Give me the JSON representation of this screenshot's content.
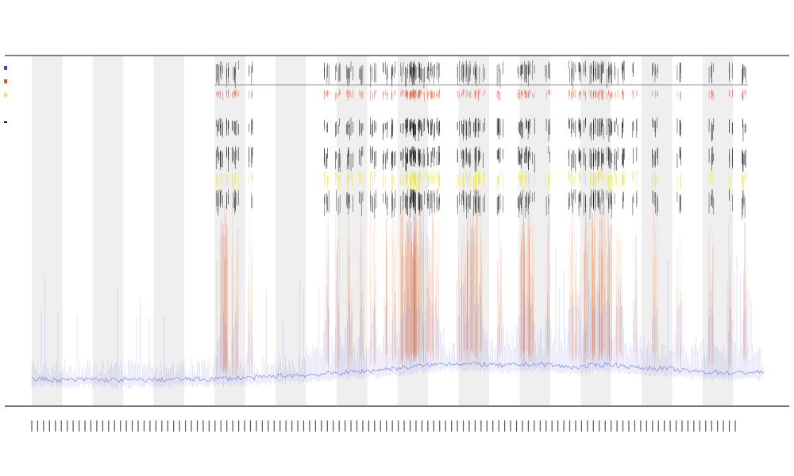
{
  "chart_data": {
    "type": "line",
    "title": "",
    "subtitle_lines": [
      "",
      ""
    ],
    "xlabel": "",
    "ylabel": "",
    "legend_placement": "top-left",
    "grid": false,
    "shaded_band_count": 12,
    "tick_label_count": 120,
    "series": [
      {
        "name": "",
        "role": "blue-trace",
        "values": [
          3,
          3,
          2,
          2,
          2,
          3,
          2,
          2,
          2,
          2,
          2,
          2,
          3,
          3,
          3,
          3,
          4,
          4,
          5,
          5,
          6,
          7,
          8,
          8,
          9,
          10,
          11,
          12,
          13,
          14,
          16,
          17,
          18,
          20,
          21,
          23,
          23,
          22,
          22,
          21,
          20,
          21,
          22,
          22,
          21,
          19,
          18,
          19,
          21,
          22,
          20,
          18,
          17,
          17,
          16,
          14,
          13,
          12,
          12,
          11,
          11,
          12,
          12
        ]
      },
      {
        "name": "",
        "role": "red-trace"
      },
      {
        "name": "",
        "role": "yellow-trace"
      },
      {
        "name": "",
        "role": "black-trace"
      }
    ]
  },
  "colors": {
    "blue": "#3b44d9",
    "red": "#e0502a",
    "orange": "#f08a2e",
    "yellow": "#e8e44a",
    "black": "#111111",
    "band": "#efefef",
    "axis": "#333333"
  }
}
